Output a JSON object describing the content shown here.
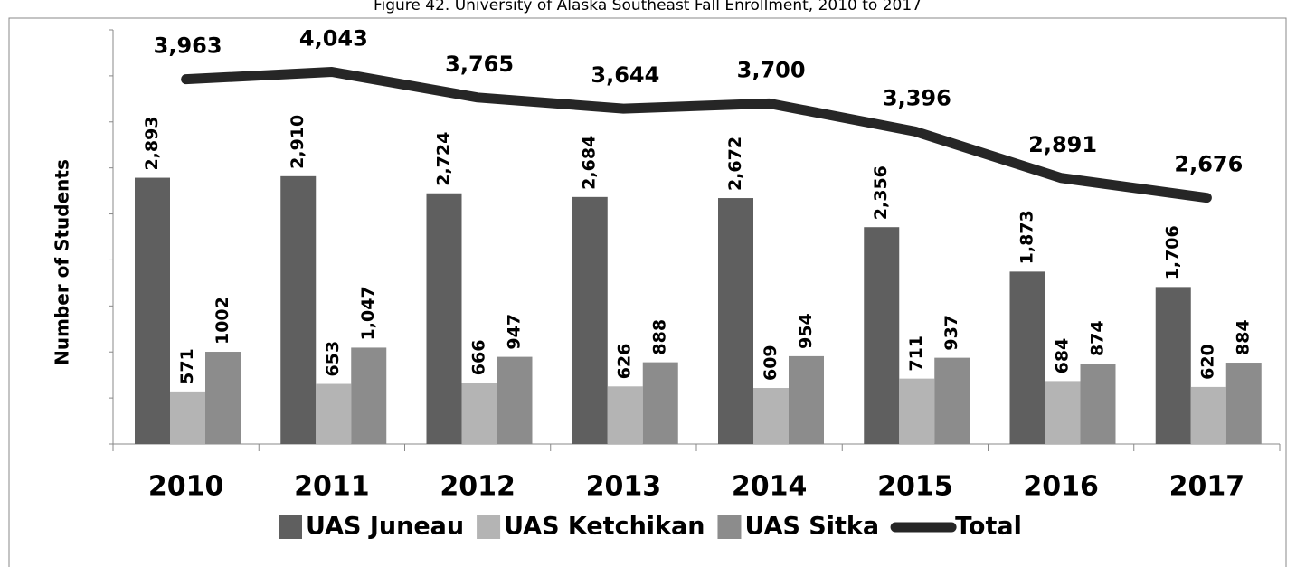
{
  "chart_data": {
    "type": "bar+line",
    "title": "Figure 42. University of Alaska Southeast Fall Enrollment, 2010 to 2017",
    "y_label": "Number of Students",
    "categories": [
      "2010",
      "2011",
      "2012",
      "2013",
      "2014",
      "2015",
      "2016",
      "2017"
    ],
    "ylim": [
      0,
      4500
    ],
    "yticks": [
      0,
      500,
      1000,
      1500,
      2000,
      2500,
      3000,
      3500,
      4000,
      4500
    ],
    "legend": "bottom",
    "series": [
      {
        "name": "UAS Juneau",
        "type": "bar",
        "color": "#5f5f5f",
        "values": [
          2893,
          2910,
          2724,
          2684,
          2672,
          2356,
          1873,
          1706
        ],
        "value_labels": [
          "2,893",
          "2,910",
          "2,724",
          "2,684",
          "2,672",
          "2,356",
          "1,873",
          "1,706"
        ]
      },
      {
        "name": "UAS Ketchikan",
        "type": "bar",
        "color": "#b4b4b4",
        "values": [
          571,
          653,
          666,
          626,
          609,
          711,
          684,
          620
        ]
      },
      {
        "name": "UAS Sitka",
        "type": "bar",
        "color": "#8c8c8c",
        "values": [
          1002,
          1047,
          947,
          888,
          954,
          937,
          874,
          884
        ],
        "value_labels": [
          "1002",
          "1,047",
          "947",
          "888",
          "954",
          "937",
          "874",
          "884"
        ]
      },
      {
        "name": "Total",
        "type": "line",
        "color": "#262626",
        "values": [
          3963,
          4043,
          3765,
          3644,
          3700,
          3396,
          2891,
          2676
        ],
        "value_labels": [
          "3,963",
          "4,043",
          "3,765",
          "3,644",
          "3,700",
          "3,396",
          "2,891",
          "2,676"
        ]
      }
    ]
  }
}
